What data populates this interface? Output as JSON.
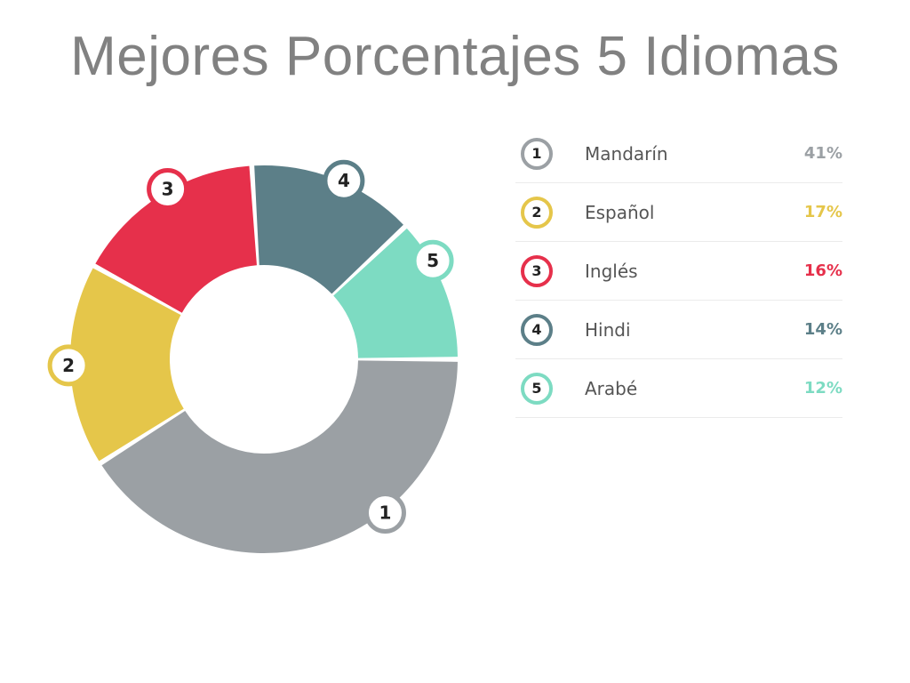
{
  "title": "Mejores Porcentajes 5 Idiomas",
  "chart_data": {
    "type": "pie",
    "title": "Mejores Porcentajes 5 Idiomas",
    "categories": [
      "Mandarín",
      "Español",
      "Inglés",
      "Hindi",
      "Arabé"
    ],
    "values": [
      41,
      17,
      16,
      14,
      12
    ],
    "unit": "%",
    "labels": [
      "41%",
      "17%",
      "16%",
      "14%",
      "12%"
    ],
    "numbers": [
      "1",
      "2",
      "3",
      "4",
      "5"
    ],
    "colors": [
      "#9ba0a4",
      "#e5c64a",
      "#e6304b",
      "#5c7f88",
      "#7ddbc2"
    ],
    "legend_placement": "right"
  },
  "legend": [
    {
      "number": "1",
      "name": "Mandarín",
      "pct": "41%",
      "color": "#9ba0a4"
    },
    {
      "number": "2",
      "name": "Español",
      "pct": "17%",
      "color": "#e5c64a"
    },
    {
      "number": "3",
      "name": "Inglés",
      "pct": "16%",
      "color": "#e6304b"
    },
    {
      "number": "4",
      "name": "Hindi",
      "pct": "14%",
      "color": "#5c7f88"
    },
    {
      "number": "5",
      "name": "Arabé",
      "pct": "12%",
      "color": "#7ddbc2"
    }
  ]
}
